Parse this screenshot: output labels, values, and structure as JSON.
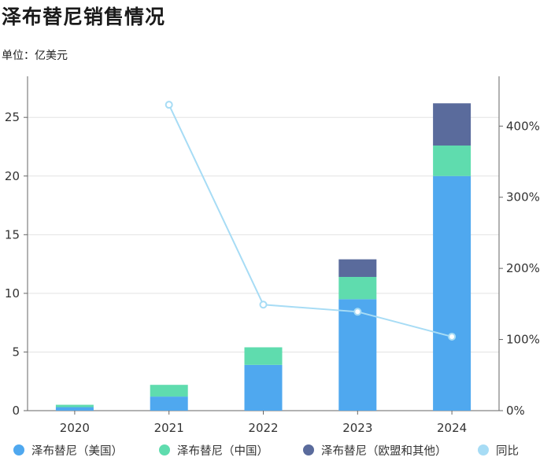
{
  "chart_data": {
    "type": "bar",
    "title": "泽布替尼销售情况",
    "subtitle": "单位：亿美元",
    "categories": [
      "2020",
      "2021",
      "2022",
      "2023",
      "2024"
    ],
    "series": [
      {
        "name": "泽布替尼（美国）",
        "kind": "bar",
        "color": "#4fa8ef",
        "values": [
          0.3,
          1.2,
          3.9,
          9.5,
          20.0
        ]
      },
      {
        "name": "泽布替尼（中国）",
        "kind": "bar",
        "color": "#5fdcae",
        "values": [
          0.2,
          1.0,
          1.5,
          1.9,
          2.6
        ]
      },
      {
        "name": "泽布替尼（欧盟和其他）",
        "kind": "bar",
        "color": "#5a6b9c",
        "values": [
          0.0,
          0.0,
          0.0,
          1.5,
          3.6
        ]
      },
      {
        "name": "同比",
        "kind": "line",
        "axis": "right",
        "color": "#a7dcf5",
        "values": [
          null,
          4.3,
          1.49,
          1.39,
          1.04
        ]
      }
    ],
    "y_left": {
      "min": 0,
      "max": 28.5,
      "ticks": [
        0,
        5,
        10,
        15,
        20,
        25
      ]
    },
    "y_right": {
      "min": 0,
      "max": 4.7,
      "ticks": [
        0,
        1,
        2,
        3,
        4
      ],
      "tick_labels": [
        "0%",
        "100%",
        "200%",
        "300%",
        "400%"
      ]
    },
    "grid": true,
    "legend_position": "bottom"
  }
}
